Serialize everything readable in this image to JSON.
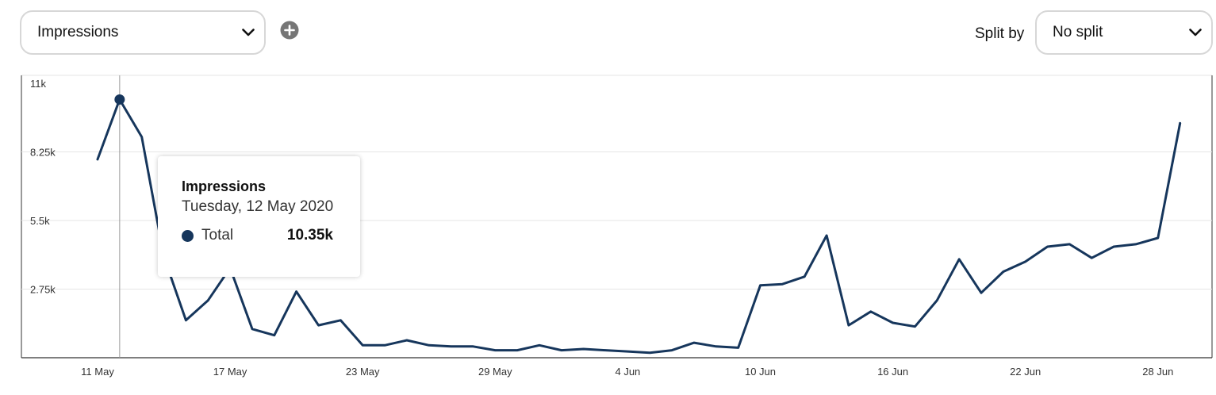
{
  "controls": {
    "metric_select": {
      "value": "Impressions"
    },
    "split_label": "Split by",
    "split_select": {
      "value": "No split"
    },
    "icons": {
      "chevron": "chevron-down-icon",
      "add": "plus-circle-icon"
    }
  },
  "colors": {
    "series": "#16365c",
    "grid": "#e6e6e6",
    "axis": "#333333",
    "crosshair": "#9a9a9a"
  },
  "tooltip": {
    "title": "Impressions",
    "date": "Tuesday, 12 May 2020",
    "series_name": "Total",
    "value": "10.35k"
  },
  "chart_data": {
    "type": "line",
    "title": "",
    "xlabel": "",
    "ylabel": "",
    "ylim": [
      0,
      11000
    ],
    "y_ticks": [
      {
        "value": 2750,
        "label": "2.75k"
      },
      {
        "value": 5500,
        "label": "5.5k"
      },
      {
        "value": 8250,
        "label": "8.25k"
      },
      {
        "value": 11000,
        "label": "11k"
      }
    ],
    "x_ticks": [
      {
        "index": 0,
        "label": "11 May"
      },
      {
        "index": 6,
        "label": "17 May"
      },
      {
        "index": 12,
        "label": "23 May"
      },
      {
        "index": 18,
        "label": "29 May"
      },
      {
        "index": 24,
        "label": "4 Jun"
      },
      {
        "index": 30,
        "label": "10 Jun"
      },
      {
        "index": 36,
        "label": "16 Jun"
      },
      {
        "index": 42,
        "label": "22 Jun"
      },
      {
        "index": 48,
        "label": "28 Jun"
      }
    ],
    "categories": [
      "11 May",
      "12 May",
      "13 May",
      "14 May",
      "15 May",
      "16 May",
      "17 May",
      "18 May",
      "19 May",
      "20 May",
      "21 May",
      "22 May",
      "23 May",
      "24 May",
      "25 May",
      "26 May",
      "27 May",
      "28 May",
      "29 May",
      "30 May",
      "31 May",
      "1 Jun",
      "2 Jun",
      "3 Jun",
      "4 Jun",
      "5 Jun",
      "6 Jun",
      "7 Jun",
      "8 Jun",
      "9 Jun",
      "10 Jun",
      "11 Jun",
      "12 Jun",
      "13 Jun",
      "14 Jun",
      "15 Jun",
      "16 Jun",
      "17 Jun",
      "18 Jun",
      "19 Jun",
      "20 Jun",
      "21 Jun",
      "22 Jun",
      "23 Jun",
      "24 Jun",
      "25 Jun",
      "26 Jun",
      "27 Jun",
      "28 Jun",
      "29 Jun"
    ],
    "series": [
      {
        "values": [
          7950,
          10350,
          8850,
          4050,
          1500,
          2300,
          3600,
          1150,
          900,
          2650,
          1300,
          1500,
          500,
          500,
          700,
          500,
          450,
          450,
          300,
          300,
          500,
          300,
          350,
          300,
          250,
          200,
          300,
          600,
          450,
          400,
          2900,
          2950,
          3250,
          4900,
          1300,
          1850,
          1400,
          1250,
          2300,
          3950,
          2600,
          3450,
          3850,
          4450,
          4550,
          4000,
          4450,
          4550,
          4800,
          9400
        ]
      }
    ],
    "highlighted_index": 1,
    "grid": true,
    "legend": "none"
  }
}
